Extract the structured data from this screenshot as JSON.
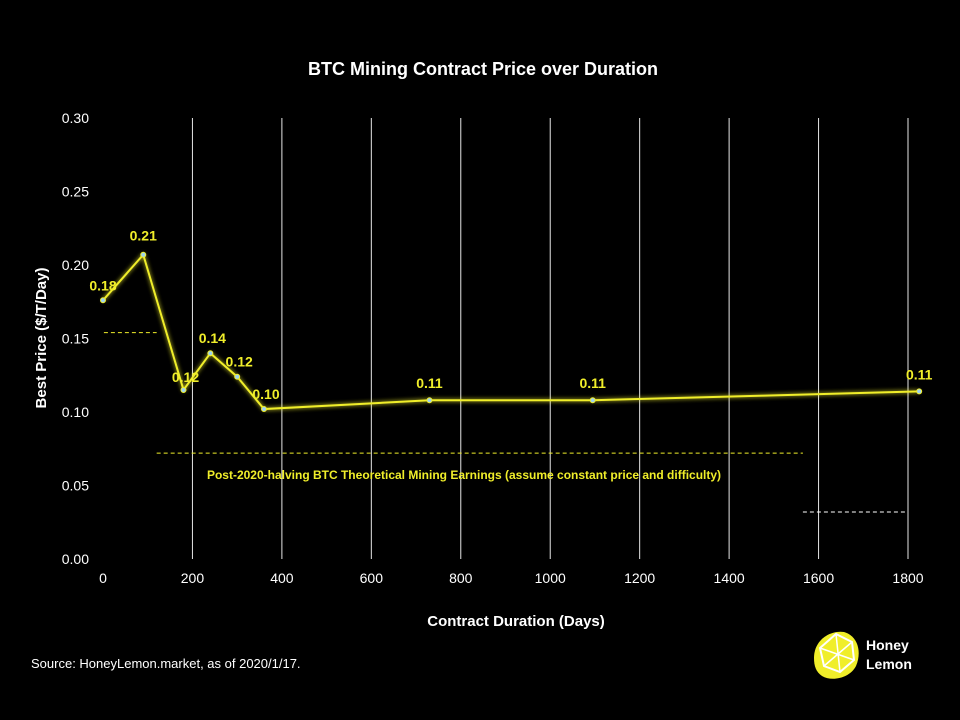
{
  "chart_data": {
    "type": "line",
    "title": "BTC Mining Contract Price over Duration",
    "xlabel": "Contract Duration (Days)",
    "ylabel": "Best Price ($/T/Day)",
    "xlim": [
      0,
      1800
    ],
    "ylim": [
      0,
      0.3
    ],
    "x_ticks": [
      0,
      200,
      400,
      600,
      800,
      1000,
      1200,
      1400,
      1600,
      1800
    ],
    "y_ticks": [
      "0.00",
      "0.05",
      "0.10",
      "0.15",
      "0.20",
      "0.25",
      "0.30"
    ],
    "grid": "vertical",
    "series": [
      {
        "color": "#f0ee2a",
        "x": [
          0,
          90,
          180,
          240,
          300,
          360,
          730,
          1095,
          1825
        ],
        "y": [
          0.176,
          0.207,
          0.115,
          0.14,
          0.124,
          0.102,
          0.108,
          0.108,
          0.114
        ],
        "labels": [
          "0.18",
          "0.21",
          "0.12",
          "0.14",
          "0.12",
          "0.10",
          "0.11",
          "0.11",
          "0.11"
        ]
      }
    ],
    "reference_lines": [
      {
        "x": [
          2,
          120
        ],
        "y": 0.154,
        "color": "#f0ee2a"
      },
      {
        "x": [
          120,
          1565
        ],
        "y": 0.072,
        "color": "#f0ee2a"
      },
      {
        "x": [
          1565,
          1800
        ],
        "y": 0.032,
        "color": "#ffffff"
      }
    ],
    "annotation": "Post-2020-halving BTC Theoretical Mining Earnings (assume constant price and difficulty)"
  },
  "source": "Source: HoneyLemon.market, as of 2020/1/17.",
  "brand": {
    "line1": "Honey",
    "line2": "Lemon"
  }
}
